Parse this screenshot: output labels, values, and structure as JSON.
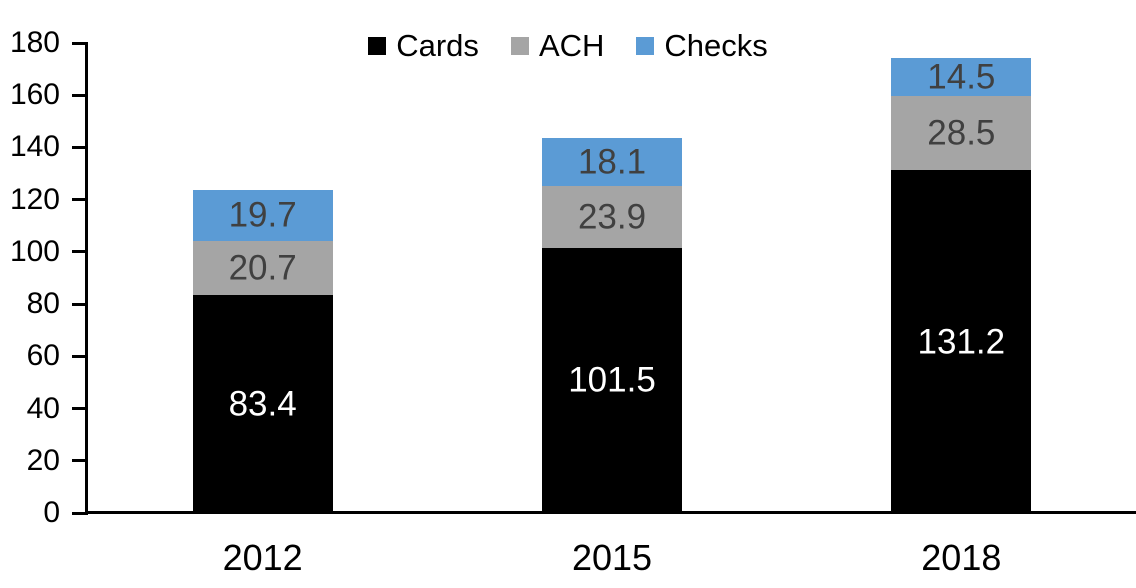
{
  "chart_data": {
    "type": "bar",
    "stacked": true,
    "title": "",
    "xlabel": "",
    "ylabel": "",
    "categories": [
      "2012",
      "2015",
      "2018"
    ],
    "series": [
      {
        "name": "Cards",
        "color": "#000000",
        "label_color": "#ffffff",
        "values": [
          83.4,
          101.5,
          131.2
        ]
      },
      {
        "name": "ACH",
        "color": "#a5a5a5",
        "label_color": "#404040",
        "values": [
          20.7,
          23.9,
          28.5
        ]
      },
      {
        "name": "Checks",
        "color": "#5b9bd5",
        "label_color": "#404040",
        "values": [
          19.7,
          18.1,
          14.5
        ]
      }
    ],
    "totals": [
      123.8,
      143.5,
      174.2
    ],
    "ylim": [
      0,
      180
    ],
    "yticks": [
      0,
      20,
      40,
      60,
      80,
      100,
      120,
      140,
      160,
      180
    ],
    "grid": false,
    "legend_position": "top-center",
    "data_labels": true,
    "axis_color": "#000000",
    "background_color": "#ffffff"
  }
}
